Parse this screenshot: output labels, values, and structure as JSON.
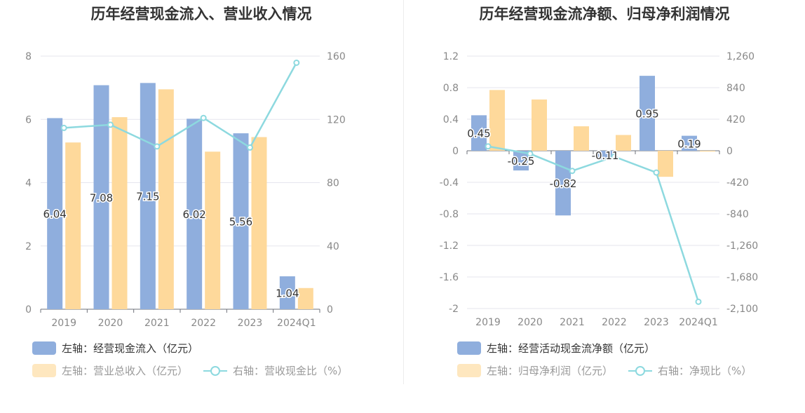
{
  "colors": {
    "bar_blue": "#8faedd",
    "bar_yellow": "#fed99b",
    "line": "#8dd9df"
  },
  "left": {
    "title": "历年经营现金流入、营业收入情况",
    "legend": {
      "bar1": "左轴：经营现金流入（亿元）",
      "bar2": "左轴：营业总收入（亿元）",
      "line": "右轴：营收现金比（%）"
    }
  },
  "right": {
    "title": "历年经营现金流净额、归母净利润情况",
    "legend": {
      "bar1": "左轴：经营活动现金流净额（亿元）",
      "bar2": "左轴：归母净利润（亿元）",
      "line": "右轴：净现比（%）"
    }
  },
  "chart_data": [
    {
      "type": "bar",
      "title": "历年经营现金流入、营业收入情况",
      "categories": [
        "2019",
        "2020",
        "2021",
        "2022",
        "2023",
        "2024Q1"
      ],
      "left_axis": {
        "ylim": [
          0,
          8
        ],
        "ticks": [
          "0",
          "2",
          "4",
          "6",
          "8"
        ]
      },
      "right_axis": {
        "ylim": [
          0,
          160
        ],
        "ticks": [
          "0",
          "40",
          "80",
          "120",
          "160"
        ]
      },
      "series": [
        {
          "name": "左轴：经营现金流入（亿元）",
          "kind": "bar",
          "axis": "left",
          "values": [
            6.04,
            7.08,
            7.15,
            6.02,
            5.56,
            1.04
          ],
          "labels": [
            "6.04",
            "7.08",
            "7.15",
            "6.02",
            "5.56",
            "1.04"
          ]
        },
        {
          "name": "左轴：营业总收入（亿元）",
          "kind": "bar",
          "axis": "left",
          "values": [
            5.27,
            6.07,
            6.95,
            4.98,
            5.44,
            0.67
          ]
        },
        {
          "name": "右轴：营收现金比（%）",
          "kind": "line",
          "axis": "right",
          "values": [
            114.6,
            116.6,
            102.9,
            120.9,
            102.2,
            155.8
          ]
        }
      ],
      "grid": true,
      "legend_position": "bottom"
    },
    {
      "type": "bar",
      "title": "历年经营现金流净额、归母净利润情况",
      "categories": [
        "2019",
        "2020",
        "2021",
        "2022",
        "2023",
        "2024Q1"
      ],
      "left_axis": {
        "ylim": [
          -2,
          1.2
        ],
        "ticks": [
          "-2",
          "-1.6",
          "-1.2",
          "-0.8",
          "-0.4",
          "0",
          "0.4",
          "0.8",
          "1.2"
        ]
      },
      "right_axis": {
        "ylim": [
          -2100,
          1260
        ],
        "ticks": [
          "-2,100",
          "-1,680",
          "-1,260",
          "-840",
          "-420",
          "0",
          "420",
          "840",
          "1,260"
        ]
      },
      "series": [
        {
          "name": "左轴：经营活动现金流净额（亿元）",
          "kind": "bar",
          "axis": "left",
          "values": [
            0.45,
            -0.25,
            -0.82,
            -0.11,
            0.95,
            0.19
          ],
          "labels": [
            "0.45",
            "-0.25",
            "-0.82",
            "-0.11",
            "0.95",
            "0.19"
          ]
        },
        {
          "name": "左轴：归母净利润（亿元）",
          "kind": "bar",
          "axis": "left",
          "values": [
            0.77,
            0.65,
            0.31,
            0.2,
            -0.33,
            -0.01
          ]
        },
        {
          "name": "右轴：净现比（%）",
          "kind": "line",
          "axis": "right",
          "values": [
            58,
            -40,
            -268,
            -78,
            -290,
            -2010
          ]
        }
      ],
      "grid": true,
      "legend_position": "bottom"
    }
  ]
}
